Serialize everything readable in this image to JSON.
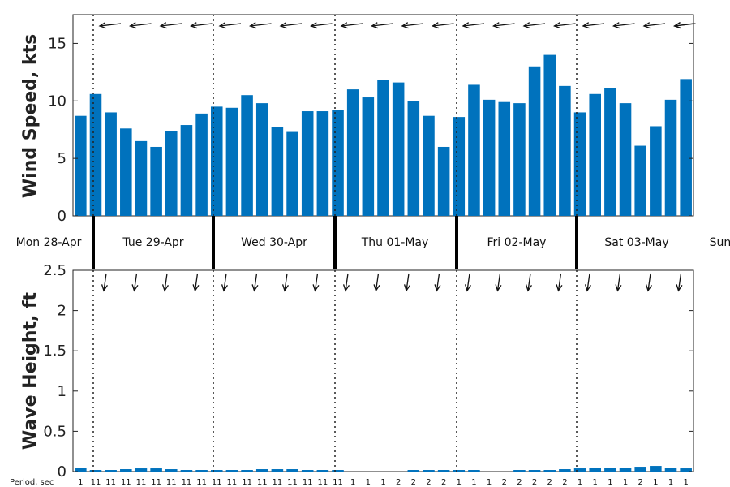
{
  "chart_data": [
    {
      "type": "bar",
      "ylabel": "Wind Speed, kts",
      "ylim": [
        0,
        17.5
      ],
      "yticks": [
        "0",
        "5",
        "10",
        "15"
      ],
      "series": [
        {
          "values": [
            8.7,
            10.6,
            9.0,
            7.6,
            6.5,
            6.0,
            7.4,
            7.9,
            8.9,
            9.5,
            9.4,
            10.5,
            9.8,
            7.7,
            7.3,
            9.1,
            9.1,
            9.2,
            11.0,
            10.3,
            11.8,
            11.6,
            10.0,
            8.7,
            6.0,
            8.6,
            11.4,
            10.1,
            9.9,
            9.8,
            13.0,
            14.0,
            11.3,
            9.0,
            10.6,
            11.1,
            9.8,
            6.1,
            7.8,
            10.1,
            11.9
          ]
        }
      ],
      "wind_arrow_directions": [
        "from-east",
        "from-east",
        "from-east",
        "from-east",
        "from-east",
        "from-east",
        "from-east",
        "from-east",
        "from-east",
        "from-east",
        "from-east",
        "from-east",
        "from-east",
        "from-east",
        "from-east",
        "from-east",
        "from-east",
        "from-east",
        "from-east",
        "from-east",
        "from-east",
        "from-east",
        "from-east",
        "from-east",
        "from-east"
      ],
      "grid": false
    },
    {
      "type": "bar",
      "ylabel": "Wave Height, ft",
      "ylim": [
        0,
        2.5
      ],
      "yticks": [
        "0",
        "0.5",
        "1",
        "1.5",
        "2",
        "2.5"
      ],
      "series": [
        {
          "values": [
            0.05,
            0.02,
            0.02,
            0.03,
            0.04,
            0.04,
            0.03,
            0.02,
            0.02,
            0.02,
            0.02,
            0.02,
            0.03,
            0.03,
            0.03,
            0.02,
            0.02,
            0.02,
            0.0,
            0.0,
            0.0,
            0.0,
            0.02,
            0.02,
            0.02,
            0.02,
            0.02,
            0.0,
            0.0,
            0.02,
            0.02,
            0.02,
            0.03,
            0.04,
            0.05,
            0.05,
            0.05,
            0.06,
            0.07,
            0.05,
            0.04
          ]
        }
      ],
      "wave_arrow_directions": [
        "from-north",
        "from-north",
        "from-north",
        "from-north",
        "from-north",
        "from-north",
        "from-north",
        "from-north",
        "from-north",
        "from-north",
        "from-north",
        "from-north",
        "from-north",
        "from-north",
        "from-north",
        "from-north",
        "from-north",
        "from-north",
        "from-north",
        "from-north"
      ],
      "period_label": "Period, sec",
      "periods": [
        "1",
        "11",
        "11",
        "11",
        "11",
        "11",
        "11",
        "11",
        "11",
        "11",
        "11",
        "11",
        "11",
        "11",
        "11",
        "11",
        "11",
        "11",
        "1",
        "1",
        "1",
        "2",
        "2",
        "2",
        "2",
        "1",
        "1",
        "1",
        "2",
        "2",
        "2",
        "2",
        "2",
        "1",
        "1",
        "1",
        "1",
        "2",
        "1",
        "1",
        "1"
      ],
      "grid": false
    }
  ],
  "days": [
    "Mon 28-Apr",
    "Tue 29-Apr",
    "Wed 30-Apr",
    "Thu 01-May",
    "Fri 02-May",
    "Sat 03-May",
    "Sun"
  ],
  "colors": {
    "bar": "#0072BD",
    "axis": "#222222",
    "arrow": "#111111"
  }
}
